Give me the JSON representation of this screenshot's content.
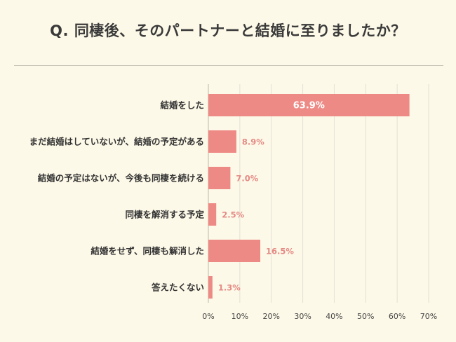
{
  "title": "Q. 同棲後、そのパートナーと結婚に至りましたか？",
  "chart_data": {
    "type": "bar",
    "orientation": "horizontal",
    "title": "Q. 同棲後、そのパートナーと結婚に至りましたか？",
    "categories": [
      "結婚をした",
      "まだ結婚はしていないが、結婚の予定がある",
      "結婚の予定はないが、今後も同棲を続ける",
      "同棲を解消する予定",
      "結婚をせず、同棲も解消した",
      "答えたくない"
    ],
    "values": [
      63.9,
      8.9,
      7.0,
      2.5,
      16.5,
      1.3
    ],
    "value_labels": [
      "63.9%",
      "8.9%",
      "7.0%",
      "2.5%",
      "16.5%",
      "1.3%"
    ],
    "xlim": [
      0,
      70
    ],
    "xticks": [
      0,
      10,
      20,
      30,
      40,
      50,
      60,
      70
    ],
    "xtick_labels": [
      "0%",
      "10%",
      "20%",
      "30%",
      "40%",
      "50%",
      "60%",
      "70%"
    ],
    "grid": true,
    "colors": {
      "bar": "#ee8a86",
      "label_outside": "#e58a84",
      "label_inside": "#ffffff",
      "grid": "#e3e0d6",
      "background": "#fdf9e8"
    }
  }
}
